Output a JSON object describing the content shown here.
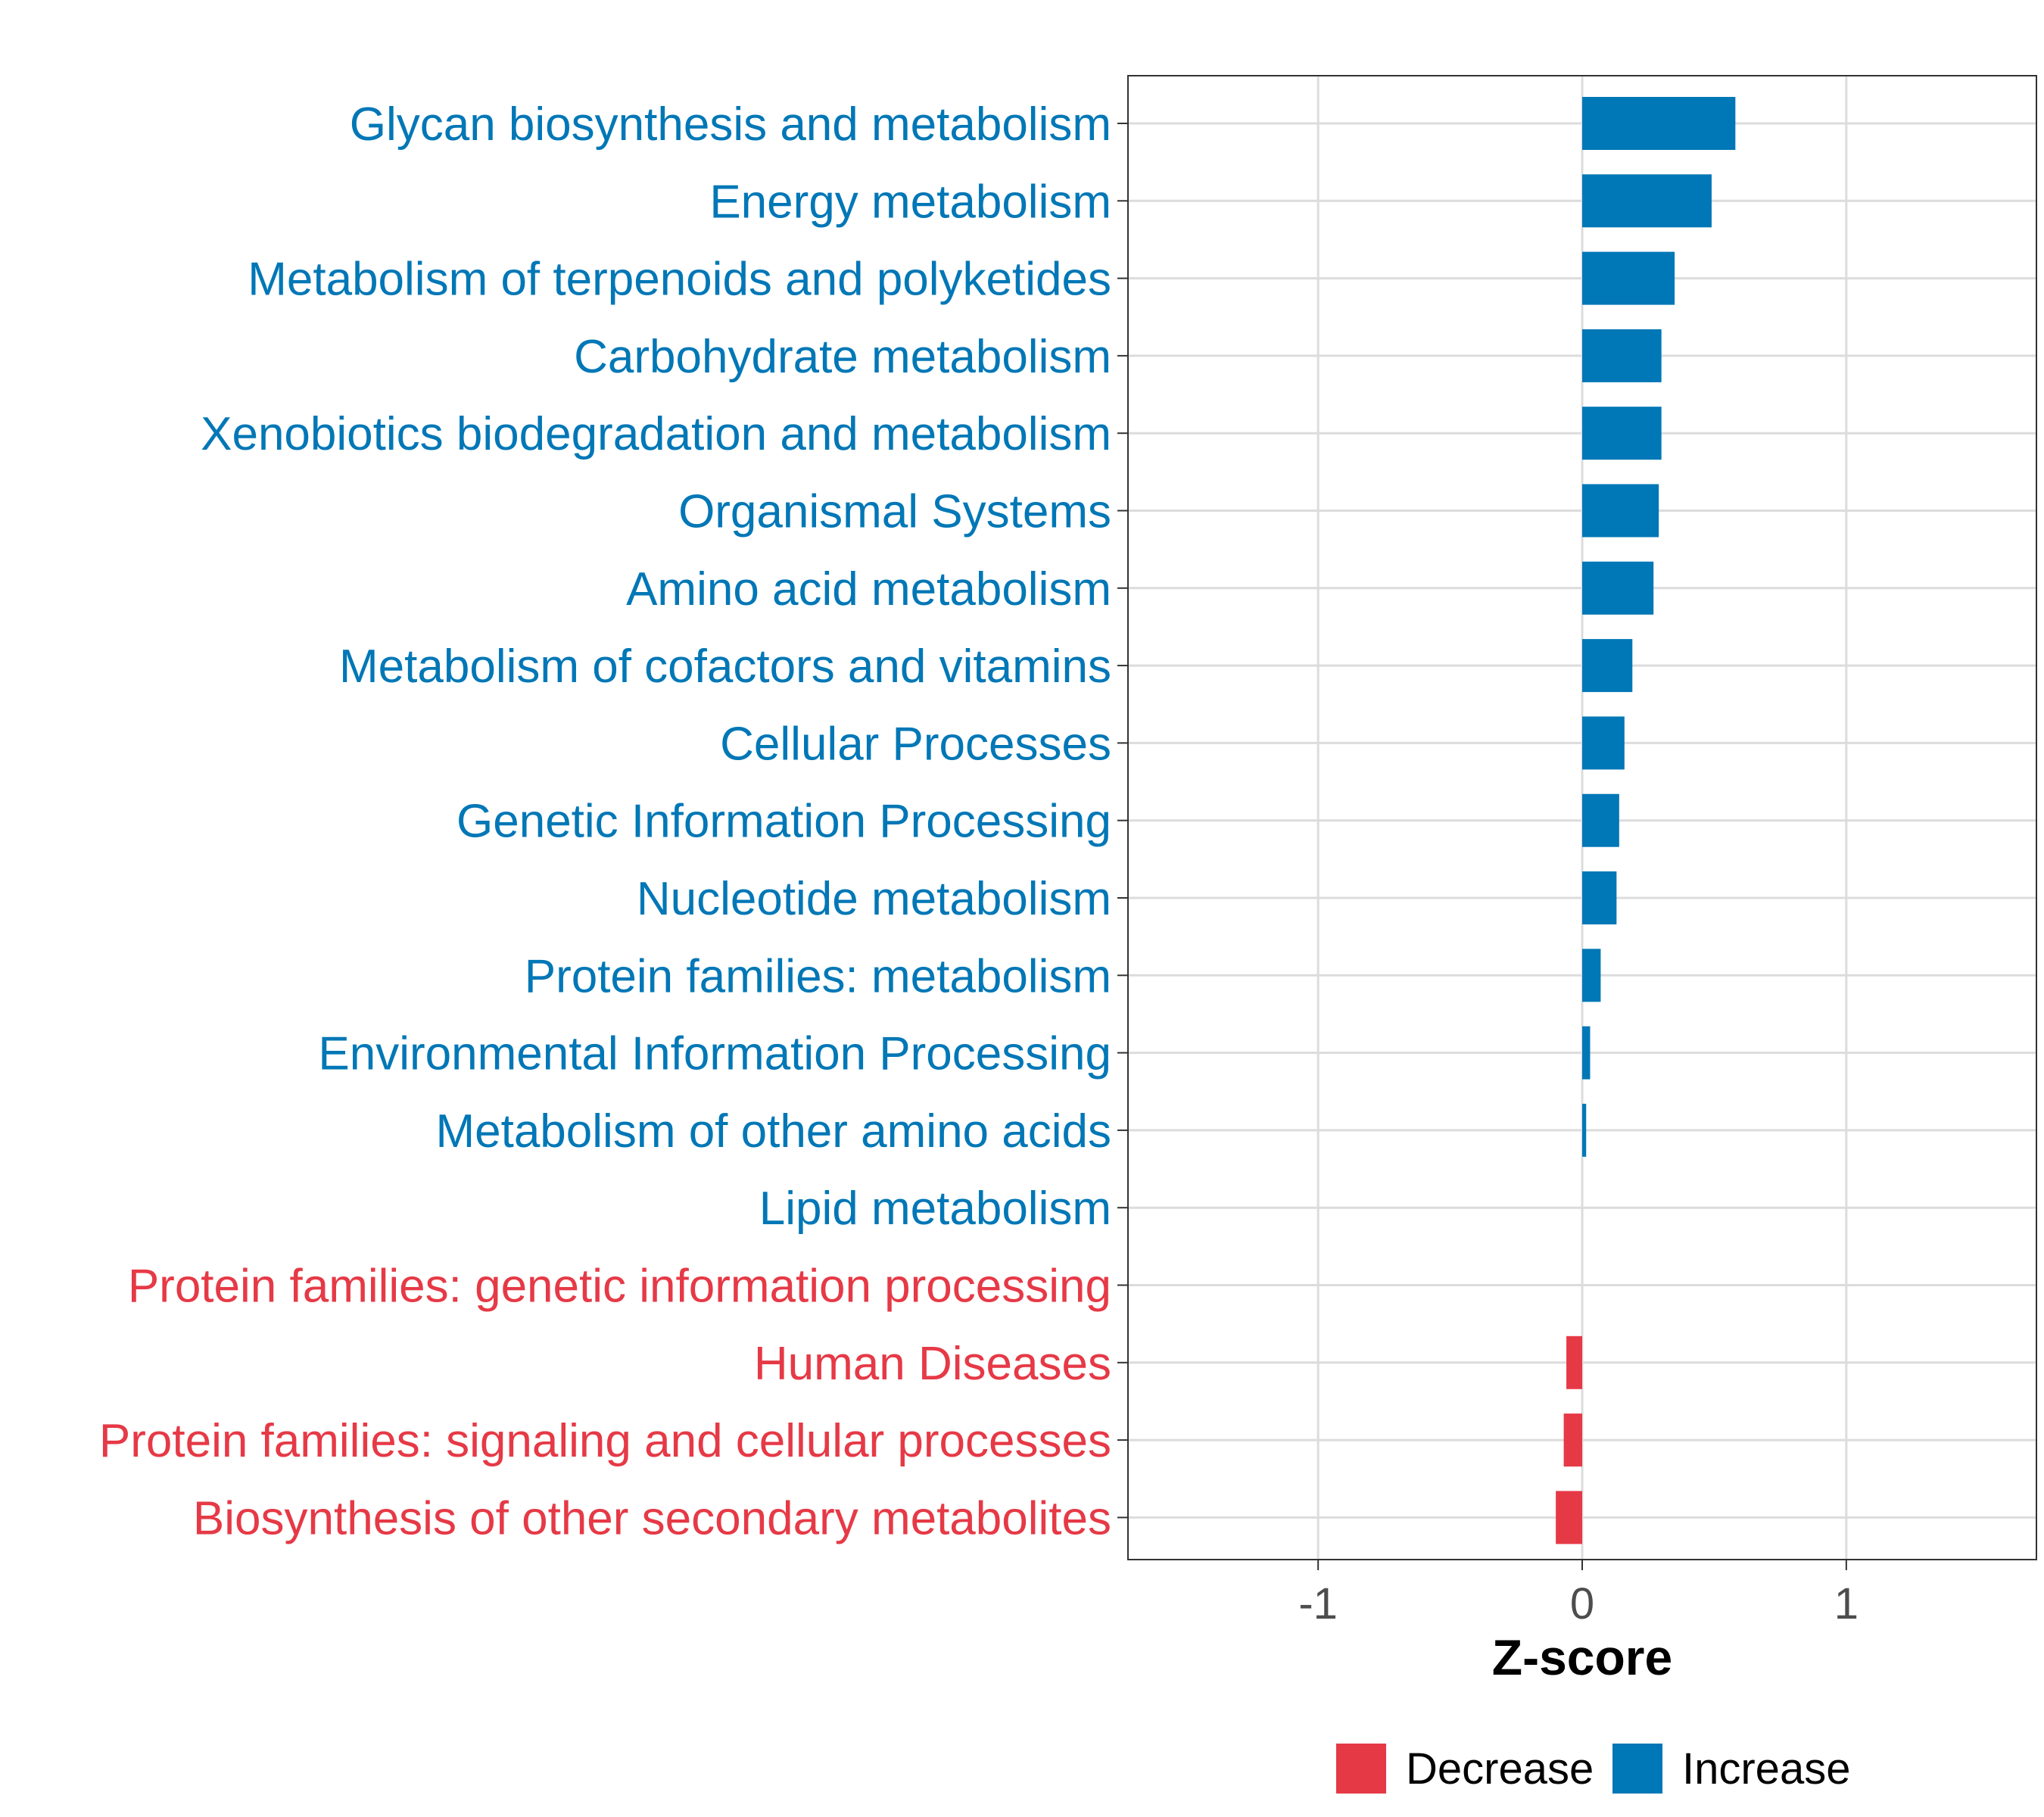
{
  "chart_data": {
    "type": "bar",
    "orientation": "horizontal",
    "xlabel": "Z-score",
    "xlim": [
      -1.72,
      1.72
    ],
    "xticks": [
      {
        "value": -1,
        "label": "-1"
      },
      {
        "value": 0,
        "label": "0"
      },
      {
        "value": 1,
        "label": "1"
      }
    ],
    "grid": true,
    "categories": [
      "Glycan biosynthesis and metabolism",
      "Energy metabolism",
      "Metabolism of terpenoids and polyketides",
      "Carbohydrate metabolism",
      "Xenobiotics biodegradation and metabolism",
      "Organismal Systems",
      "Amino acid metabolism",
      "Metabolism of cofactors and vitamins",
      "Cellular Processes",
      "Genetic Information Processing",
      "Nucleotide metabolism",
      "Protein families: metabolism",
      "Environmental Information Processing",
      "Metabolism of other amino acids",
      "Lipid metabolism",
      "Protein families: genetic information processing",
      "Human Diseases",
      "Protein families: signaling and cellular processes",
      "Biosynthesis of other secondary metabolites"
    ],
    "values": [
      0.58,
      0.49,
      0.35,
      0.3,
      0.3,
      0.29,
      0.27,
      0.19,
      0.16,
      0.14,
      0.13,
      0.07,
      0.03,
      0.015,
      0.0,
      0.0,
      -0.06,
      -0.07,
      -0.1
    ],
    "groups": [
      "Increase",
      "Increase",
      "Increase",
      "Increase",
      "Increase",
      "Increase",
      "Increase",
      "Increase",
      "Increase",
      "Increase",
      "Increase",
      "Increase",
      "Increase",
      "Increase",
      "Increase",
      "Decrease",
      "Decrease",
      "Decrease",
      "Decrease"
    ],
    "legend": {
      "position": "bottom",
      "items": [
        {
          "label": "Decrease",
          "color": "#E63946"
        },
        {
          "label": "Increase",
          "color": "#0077B6"
        }
      ]
    }
  }
}
